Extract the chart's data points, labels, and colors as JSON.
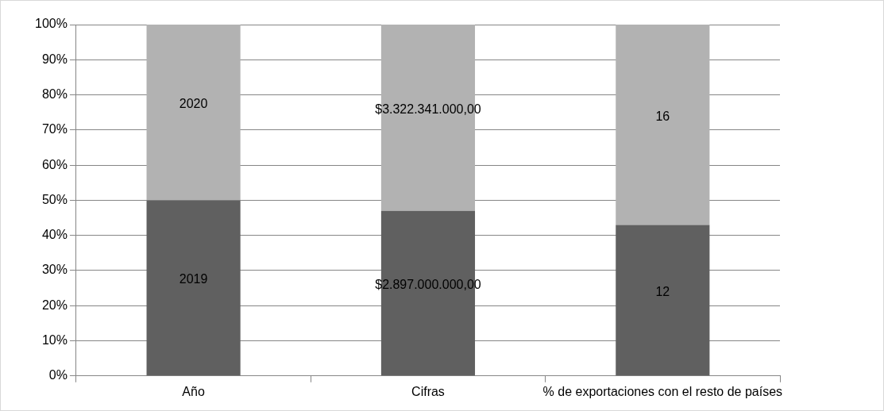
{
  "chart_data": {
    "type": "bar",
    "stacked": true,
    "categories": [
      "Año",
      "Cifras",
      "% de exportaciones con el resto de países"
    ],
    "series": [
      {
        "color": "#606060",
        "values": [
          50,
          47,
          43
        ]
      },
      {
        "color": "#b2b2b2",
        "values": [
          50,
          53,
          57
        ]
      }
    ],
    "annotations": [
      "2019",
      "2020",
      "$2.897.000.000,00",
      "$3.322.341.000,00",
      "12",
      "16"
    ],
    "ylim": [
      0,
      100
    ],
    "yticks": [
      {
        "value": 0,
        "label": "0%"
      },
      {
        "value": 10,
        "label": "10%"
      },
      {
        "value": 20,
        "label": "20%"
      },
      {
        "value": 30,
        "label": "30%"
      },
      {
        "value": 40,
        "label": "40%"
      },
      {
        "value": 50,
        "label": "50%"
      },
      {
        "value": 60,
        "label": "60%"
      },
      {
        "value": 70,
        "label": "70%"
      },
      {
        "value": 80,
        "label": "80%"
      },
      {
        "value": 90,
        "label": "90%"
      },
      {
        "value": 100,
        "label": "100%"
      }
    ],
    "grid": "y",
    "legend": false
  }
}
